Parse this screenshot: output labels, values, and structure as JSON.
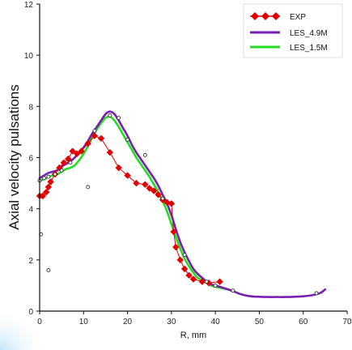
{
  "chart_data": {
    "type": "line",
    "xlabel": "R, mm",
    "ylabel": "Axial velocity pulsations",
    "xlim": [
      0,
      70
    ],
    "ylim": [
      0,
      12
    ],
    "xticks": [
      0,
      10,
      20,
      30,
      40,
      50,
      60,
      70
    ],
    "yticks": [
      0,
      2,
      4,
      6,
      8,
      10,
      12
    ],
    "grid": false,
    "legend_position": "top-right",
    "series": [
      {
        "name": "EXP",
        "style": "line-diamond",
        "color": "#e00000",
        "x": [
          0,
          0.7,
          1.5,
          2,
          2.5,
          3.5,
          4.5,
          5.5,
          6.5,
          7.5,
          8.5,
          9.5,
          11,
          12.5,
          14,
          16,
          18,
          20,
          22,
          24,
          25,
          26,
          27,
          28,
          29,
          30,
          30.5,
          31,
          32,
          33,
          34,
          35,
          37,
          38.5,
          41
        ],
        "y": [
          4.5,
          4.5,
          4.65,
          4.85,
          5.05,
          5.35,
          5.6,
          5.8,
          5.95,
          6.25,
          6.15,
          6.25,
          6.55,
          6.85,
          6.75,
          6.2,
          5.6,
          5.3,
          5.0,
          4.95,
          4.8,
          4.7,
          4.55,
          4.35,
          4.25,
          4.2,
          3.1,
          2.5,
          2.0,
          1.65,
          1.4,
          1.25,
          1.15,
          1.1,
          1.15
        ]
      },
      {
        "name": "LES_4.9M",
        "style": "line",
        "color": "#7a1fb0",
        "x": [
          0,
          1,
          2,
          3,
          4,
          5,
          6,
          7,
          8,
          9,
          10,
          11,
          12,
          13,
          14,
          15,
          16,
          17,
          18,
          19,
          20,
          21,
          22,
          23,
          24,
          25,
          26,
          27,
          28,
          29,
          30,
          31,
          32,
          33,
          34,
          35,
          36,
          37,
          38,
          39,
          40,
          42,
          44,
          46,
          48,
          50,
          52,
          54,
          56,
          58,
          60,
          62,
          64,
          65
        ],
        "y": [
          5.2,
          5.3,
          5.4,
          5.45,
          5.5,
          5.65,
          5.75,
          5.85,
          6.0,
          6.2,
          6.4,
          6.65,
          6.95,
          7.2,
          7.45,
          7.7,
          7.8,
          7.7,
          7.45,
          7.15,
          6.85,
          6.5,
          6.2,
          5.95,
          5.7,
          5.45,
          5.2,
          4.9,
          4.55,
          4.2,
          3.75,
          3.2,
          2.7,
          2.3,
          1.95,
          1.65,
          1.45,
          1.3,
          1.15,
          1.05,
          1.0,
          0.9,
          0.78,
          0.65,
          0.58,
          0.56,
          0.55,
          0.55,
          0.55,
          0.56,
          0.58,
          0.62,
          0.72,
          0.85
        ]
      },
      {
        "name": "LES_1.5M",
        "style": "line",
        "color": "#22dd22",
        "x": [
          0,
          1,
          2,
          3,
          4,
          5,
          6,
          7,
          8,
          9,
          10,
          11,
          12,
          13,
          14,
          15,
          16,
          17,
          18,
          19,
          20,
          21,
          22,
          23,
          24,
          25,
          26,
          27,
          28,
          29,
          30,
          31,
          32,
          33,
          34,
          35,
          36,
          37,
          38,
          39,
          40,
          42,
          44
        ],
        "y": [
          5.1,
          5.15,
          5.25,
          5.3,
          5.35,
          5.45,
          5.55,
          5.6,
          5.7,
          5.9,
          6.15,
          6.45,
          6.8,
          7.1,
          7.35,
          7.55,
          7.6,
          7.45,
          7.2,
          6.9,
          6.6,
          6.3,
          6.0,
          5.75,
          5.5,
          5.25,
          4.95,
          4.65,
          4.3,
          3.9,
          3.4,
          2.9,
          2.45,
          2.05,
          1.75,
          1.5,
          1.3,
          1.2,
          1.1,
          1.0,
          0.95,
          0.88,
          0.8
        ]
      },
      {
        "name": "",
        "style": "open-circle",
        "color": "#333333",
        "x": [
          0,
          0.3,
          1,
          2,
          3.5,
          5,
          7,
          11,
          12.5,
          16,
          18,
          20,
          24,
          28,
          33,
          38,
          40,
          44,
          63
        ],
        "y": [
          5.1,
          3.0,
          5.2,
          5.25,
          5.35,
          5.5,
          5.8,
          4.85,
          7.05,
          7.65,
          7.55,
          6.7,
          6.1,
          4.4,
          2.2,
          1.15,
          1.0,
          0.8,
          0.7
        ]
      },
      {
        "name": "",
        "style": "open-circle",
        "color": "#333333",
        "x": [
          2
        ],
        "y": [
          1.6
        ]
      }
    ]
  }
}
